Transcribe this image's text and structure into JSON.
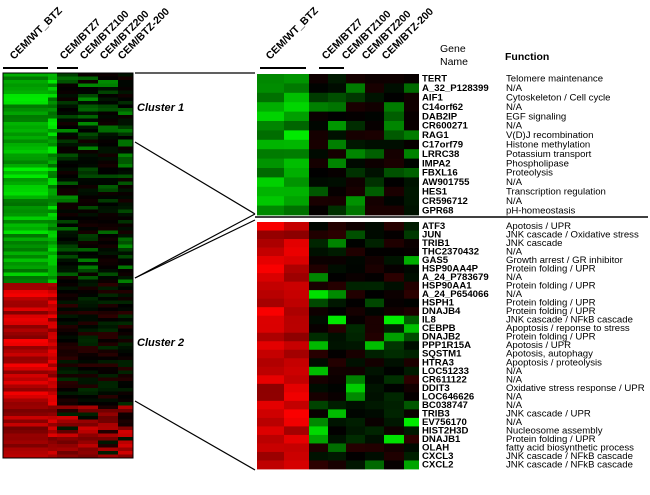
{
  "column_headers": [
    "CEM/WT_BTZ",
    "CEM/BTZ7",
    "CEM/BTZ100",
    "CEM/BTZ200",
    "CEM/BTZ-200"
  ],
  "table_headers": {
    "gene_name": "Gene Name",
    "function": "Function"
  },
  "cluster_labels": {
    "cluster1": "Cluster 1",
    "cluster2": "Cluster 2"
  },
  "heatmap_colors": {
    "up": "#e60000",
    "down": "#00e600",
    "neutral": "#000000"
  },
  "cluster1": {
    "genes": [
      "TERT",
      "A_32_P128399",
      "AIF1",
      "C14orf62",
      "DAB2IP",
      "CR600271",
      "RAG1",
      "C17orf79",
      "LRRC38",
      "IMPA2",
      "FBXL16",
      "AW901755",
      "HES1",
      "CR596712",
      "GPR68"
    ],
    "functions": [
      "Telomere maintenance",
      "N/A",
      "Cytoskeleton / Cell cycle",
      "N/A",
      "EGF signaling",
      "N/A",
      "V(D)J recombination",
      "Histone methylation",
      "Potassium transport",
      "Phospholipase",
      "Proteolysis",
      "N/A",
      "Transcription regulation",
      "N/A",
      "pH-homeostasis"
    ]
  },
  "cluster2": {
    "genes": [
      "ATF3",
      "JUN",
      "TRIB1",
      "THC2370432",
      "GAS5",
      "HSP90AA4P",
      "A_24_P783679",
      "HSP90AA1",
      "A_24_P654066",
      "HSPH1",
      "DNAJB4",
      "IL8",
      "CEBPB",
      "DNAJB2",
      "PPP1R15A",
      "SQSTM1",
      "HTRA3",
      "LOC51233",
      "CR611122",
      "DDIT3",
      "LOC646626",
      "BC038747",
      "TRIB3",
      "EV756170",
      "HIST2H3D",
      "DNAJB1",
      "OLAH",
      "CXCL3",
      "CXCL2"
    ],
    "functions": [
      "Apotosis / UPR",
      "JNK cascade / Oxidative stress",
      "JNK cascade",
      "N/A",
      "Growth arrest / GR inhibitor",
      "Protein folding / UPR",
      "N/A",
      "Protein folding / UPR",
      "N/A",
      "Protein folding / UPR",
      "Protein folding / UPR",
      "JNK cascade / NFkB cascade",
      "Apoptosis / reponse to stress",
      "Protein folding / UPR",
      "Apotosis / UPR",
      "Apotosis, autophagy",
      "Apoptosis / proteolysis",
      "N/A",
      "N/A",
      "Oxidative stress response / UPR",
      "N/A",
      "N/A",
      "JNK cascade / UPR",
      "N/A",
      "Nucleosome assembly",
      "Protein folding / UPR",
      "fatty acid biosynthetic process",
      "JNK cascade / NFkB cascade",
      "JNK cascade / NFkB cascade"
    ]
  }
}
